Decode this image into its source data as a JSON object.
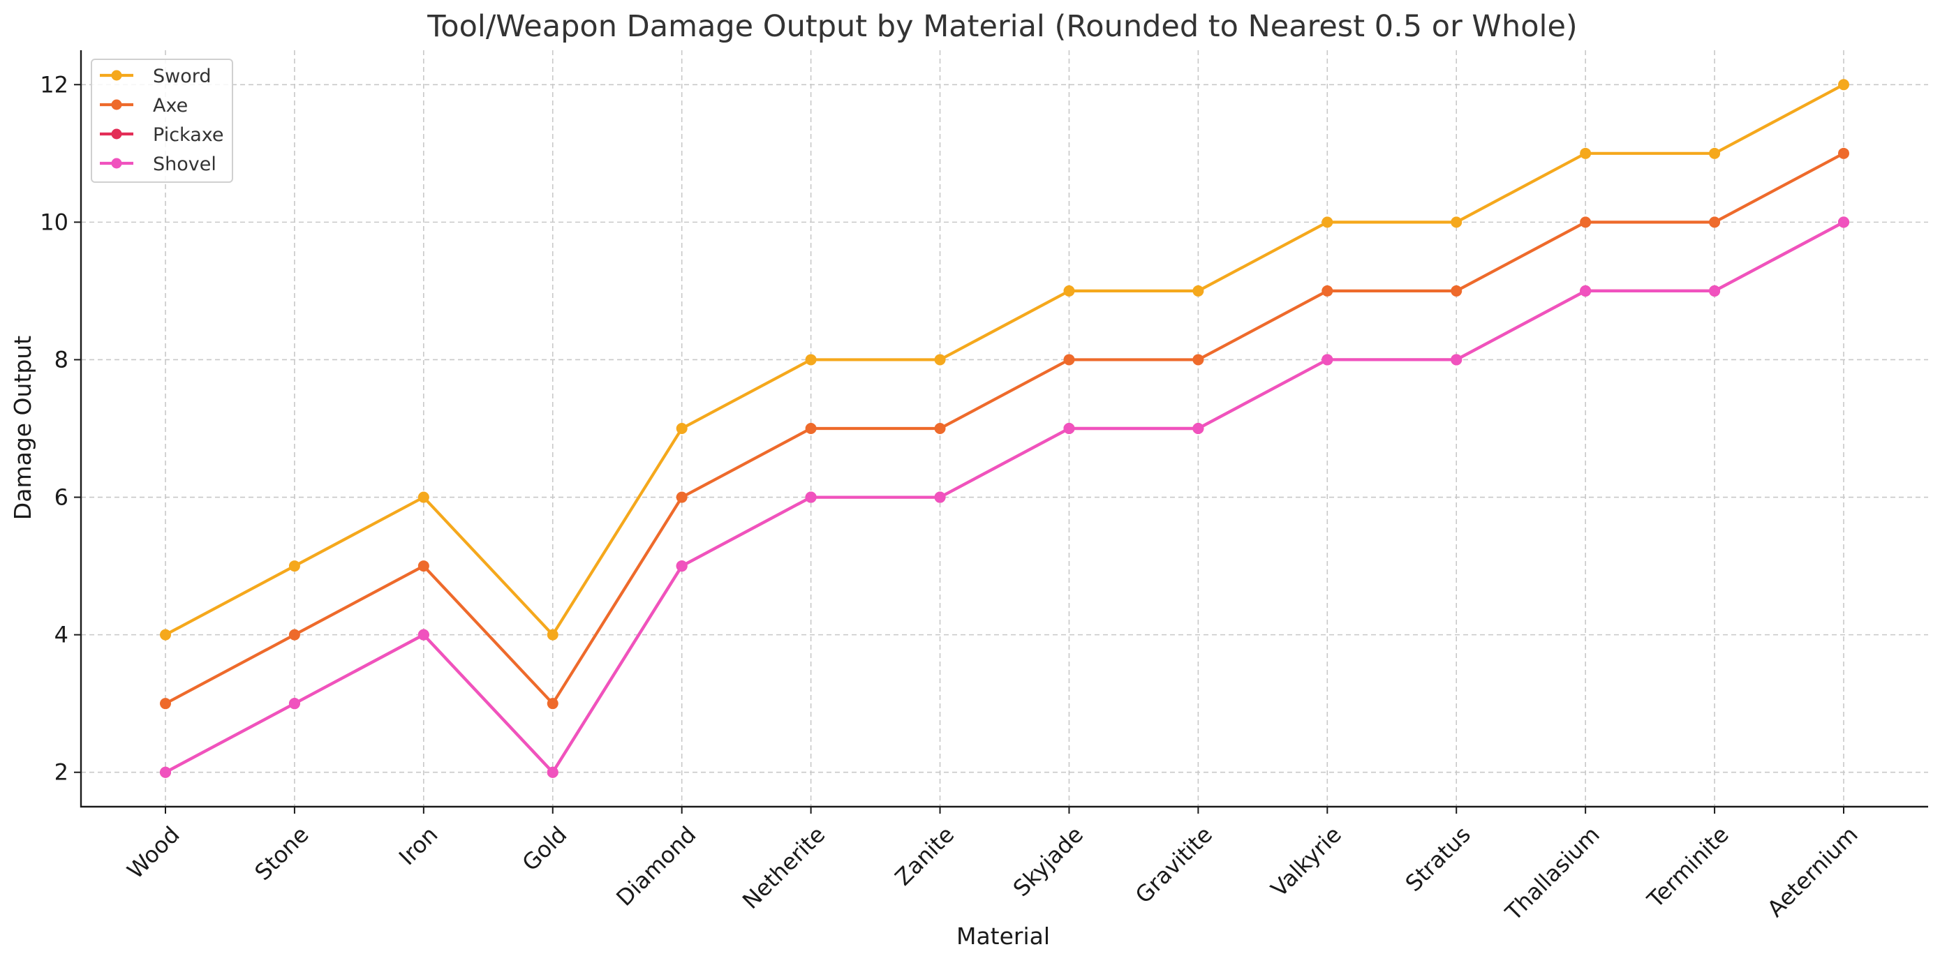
{
  "chart_data": {
    "type": "line",
    "title": "Tool/Weapon Damage Output by Material (Rounded to Nearest 0.5 or Whole)",
    "xlabel": "Material",
    "ylabel": "Damage Output",
    "categories": [
      "Wood",
      "Stone",
      "Iron",
      "Gold",
      "Diamond",
      "Netherite",
      "Zanite",
      "Skyjade",
      "Gravitite",
      "Valkyrie",
      "Stratus",
      "Thallasium",
      "Terminite",
      "Aeternium"
    ],
    "ylim": [
      1.5,
      12.5
    ],
    "yticks": [
      2,
      4,
      6,
      8,
      10,
      12
    ],
    "grid": true,
    "legend_position": "top-left",
    "series": [
      {
        "name": "Sword",
        "color": "#F5A81C",
        "values": [
          4,
          5,
          6,
          4,
          7,
          8,
          8,
          9,
          9,
          10,
          10,
          11,
          11,
          12
        ]
      },
      {
        "name": "Axe",
        "color": "#EE6A2B",
        "values": [
          3,
          4,
          5,
          3,
          6,
          7,
          7,
          8,
          8,
          9,
          9,
          10,
          10,
          11
        ]
      },
      {
        "name": "Pickaxe",
        "color": "#E32E57",
        "values": [
          2,
          3,
          4,
          2,
          5,
          6,
          6,
          7,
          7,
          8,
          8,
          9,
          9,
          10
        ]
      },
      {
        "name": "Shovel",
        "color": "#F052BE",
        "values": [
          2,
          3,
          4,
          2,
          5,
          6,
          6,
          7,
          7,
          8,
          8,
          9,
          9,
          10
        ]
      }
    ]
  }
}
